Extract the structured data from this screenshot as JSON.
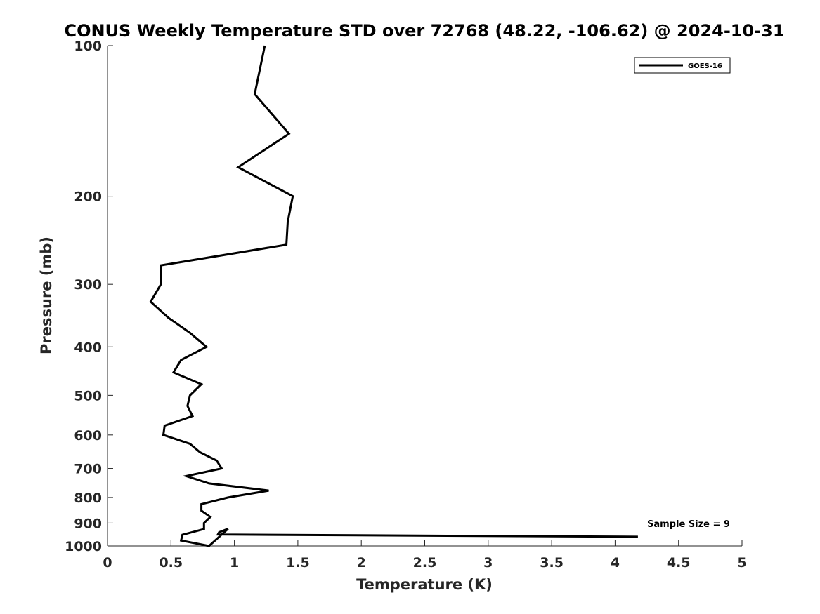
{
  "chart_data": {
    "type": "line",
    "title": "CONUS Weekly Temperature STD over 72768 (48.22, -106.62) @ 2024-10-31",
    "xlabel": "Temperature (K)",
    "ylabel": "Pressure (mb)",
    "xlim": [
      0,
      5
    ],
    "ylim": [
      100,
      1000
    ],
    "y_scale": "log",
    "y_reversed": true,
    "x_ticks": [
      0,
      0.5,
      1,
      1.5,
      2,
      2.5,
      3,
      3.5,
      4,
      4.5,
      5
    ],
    "x_tick_labels": [
      "0",
      "0.5",
      "1",
      "1.5",
      "2",
      "2.5",
      "3",
      "3.5",
      "4",
      "4.5",
      "5"
    ],
    "y_ticks": [
      100,
      200,
      300,
      400,
      500,
      600,
      700,
      800,
      900,
      1000
    ],
    "y_tick_labels": [
      "100",
      "200",
      "300",
      "400",
      "500",
      "600",
      "700",
      "800",
      "900",
      "1000"
    ],
    "grid": false,
    "legend_position": "top-right",
    "annotation": "Sample Size = 9",
    "series": [
      {
        "name": "GOES-16",
        "color": "#000000",
        "points": [
          {
            "x": 1.24,
            "p": 100
          },
          {
            "x": 1.16,
            "p": 125
          },
          {
            "x": 1.43,
            "p": 150
          },
          {
            "x": 1.03,
            "p": 175
          },
          {
            "x": 1.46,
            "p": 200
          },
          {
            "x": 1.42,
            "p": 225
          },
          {
            "x": 1.41,
            "p": 250
          },
          {
            "x": 0.42,
            "p": 275
          },
          {
            "x": 0.42,
            "p": 300
          },
          {
            "x": 0.34,
            "p": 325
          },
          {
            "x": 0.48,
            "p": 350
          },
          {
            "x": 0.65,
            "p": 375
          },
          {
            "x": 0.78,
            "p": 400
          },
          {
            "x": 0.58,
            "p": 425
          },
          {
            "x": 0.52,
            "p": 450
          },
          {
            "x": 0.74,
            "p": 475
          },
          {
            "x": 0.65,
            "p": 500
          },
          {
            "x": 0.63,
            "p": 525
          },
          {
            "x": 0.67,
            "p": 550
          },
          {
            "x": 0.45,
            "p": 575
          },
          {
            "x": 0.44,
            "p": 600
          },
          {
            "x": 0.65,
            "p": 625
          },
          {
            "x": 0.73,
            "p": 650
          },
          {
            "x": 0.86,
            "p": 675
          },
          {
            "x": 0.9,
            "p": 700
          },
          {
            "x": 0.62,
            "p": 725
          },
          {
            "x": 0.8,
            "p": 750
          },
          {
            "x": 1.27,
            "p": 775
          },
          {
            "x": 0.95,
            "p": 800
          },
          {
            "x": 0.74,
            "p": 825
          },
          {
            "x": 0.74,
            "p": 850
          },
          {
            "x": 0.81,
            "p": 875
          },
          {
            "x": 0.76,
            "p": 900
          },
          {
            "x": 0.76,
            "p": 925
          },
          {
            "x": 0.59,
            "p": 950
          },
          {
            "x": 0.58,
            "p": 975
          },
          {
            "x": 0.8,
            "p": 1000
          }
        ],
        "bottom_points": [
          {
            "x": 0.8,
            "p": 1000
          },
          {
            "x": 0.95,
            "p": 1025
          },
          {
            "x": 0.88,
            "p": 1040
          },
          {
            "x": 0.87,
            "p": 1050
          },
          {
            "x": 4.18,
            "p": 1060
          }
        ]
      }
    ]
  }
}
